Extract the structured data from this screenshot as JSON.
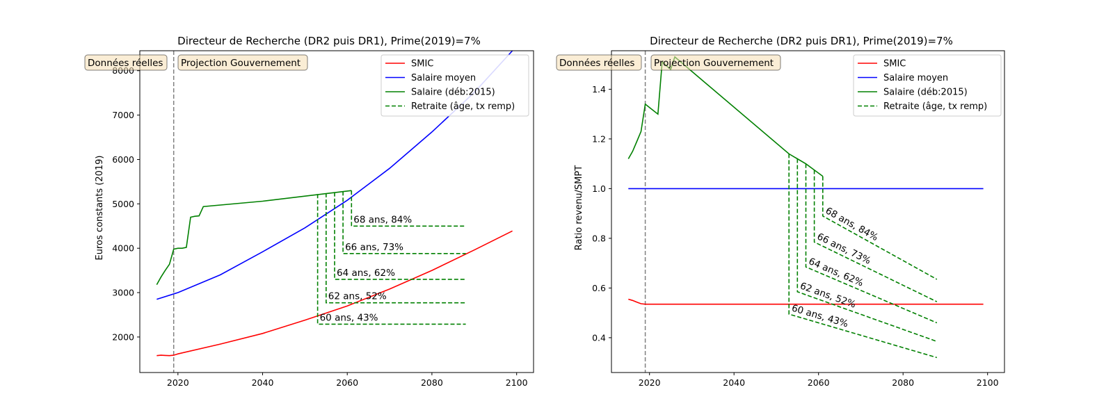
{
  "chart_data": [
    {
      "type": "line",
      "title": "Directeur de Recherche (DR2 puis DR1), Prime(2019)=7%",
      "xlabel": "",
      "ylabel": "Euros constants (2019)",
      "xlim": [
        2011,
        2104
      ],
      "ylim": [
        1200,
        8450
      ],
      "xticks": [
        2020,
        2040,
        2060,
        2080,
        2100
      ],
      "yticks": [
        2000,
        3000,
        4000,
        5000,
        6000,
        7000,
        8000
      ],
      "grid": false,
      "legend_position": "top-right",
      "vline_x": 2019,
      "boxes": [
        "Données réelles",
        "Projection Gouvernement"
      ],
      "series": [
        {
          "name": "SMIC",
          "style": "solid",
          "color": "#ff0000",
          "x": [
            2015,
            2016,
            2017,
            2018,
            2019,
            2020,
            2030,
            2040,
            2050,
            2060,
            2070,
            2080,
            2090,
            2099
          ],
          "y": [
            1580,
            1590,
            1585,
            1580,
            1590,
            1620,
            1840,
            2080,
            2380,
            2700,
            3080,
            3500,
            3960,
            4390
          ]
        },
        {
          "name": "Salaire moyen",
          "style": "solid",
          "color": "#0000ff",
          "x": [
            2015,
            2020,
            2030,
            2040,
            2050,
            2060,
            2070,
            2080,
            2090,
            2099
          ],
          "y": [
            2850,
            3000,
            3400,
            3920,
            4460,
            5080,
            5800,
            6620,
            7510,
            8450
          ]
        },
        {
          "name": "Salaire (déb:2015)",
          "style": "solid",
          "color": "#008000",
          "x": [
            2015,
            2016,
            2017,
            2018,
            2019,
            2020,
            2021,
            2022,
            2023,
            2024,
            2025,
            2026,
            2040,
            2061
          ],
          "y": [
            3180,
            3350,
            3500,
            3640,
            3980,
            4000,
            4000,
            4020,
            4700,
            4720,
            4730,
            4940,
            5060,
            5300
          ]
        },
        {
          "name": "Retraite (âge, tx remp)",
          "style": "dashed",
          "color": "#008000",
          "segments": [
            {
              "label": "60 ans, 43%",
              "start_x": 2053,
              "start_y": 5220,
              "end_x": 2088,
              "level": 2290
            },
            {
              "label": "62 ans, 52%",
              "start_x": 2055,
              "start_y": 5240,
              "end_x": 2088,
              "level": 2770
            },
            {
              "label": "64 ans, 62%",
              "start_x": 2057,
              "start_y": 5260,
              "end_x": 2088,
              "level": 3300
            },
            {
              "label": "66 ans, 73%",
              "start_x": 2059,
              "start_y": 5280,
              "end_x": 2088,
              "level": 3880
            },
            {
              "label": "68 ans, 84%",
              "start_x": 2061,
              "start_y": 5300,
              "end_x": 2088,
              "level": 4500
            }
          ]
        }
      ]
    },
    {
      "type": "line",
      "title": "Directeur de Recherche (DR2 puis DR1), Prime(2019)=7%",
      "xlabel": "",
      "ylabel": "Ratio revenu/SMPT",
      "xlim": [
        2011,
        2104
      ],
      "ylim": [
        0.26,
        1.555
      ],
      "xticks": [
        2020,
        2040,
        2060,
        2080,
        2100
      ],
      "yticks": [
        0.4,
        0.6,
        0.8,
        1.0,
        1.2,
        1.4
      ],
      "grid": false,
      "legend_position": "top-right",
      "vline_x": 2019,
      "boxes": [
        "Données réelles",
        "Projection Gouvernement"
      ],
      "series": [
        {
          "name": "SMIC",
          "style": "solid",
          "color": "#ff0000",
          "x": [
            2015,
            2016,
            2017,
            2018,
            2019,
            2020,
            2099
          ],
          "y": [
            0.555,
            0.55,
            0.543,
            0.537,
            0.535,
            0.535,
            0.535
          ]
        },
        {
          "name": "Salaire moyen",
          "style": "solid",
          "color": "#0000ff",
          "x": [
            2015,
            2099
          ],
          "y": [
            1.0,
            1.0
          ]
        },
        {
          "name": "Salaire (déb:2015)",
          "style": "solid",
          "color": "#008000",
          "x": [
            2015,
            2016,
            2017,
            2018,
            2019,
            2022,
            2023,
            2025,
            2026,
            2053,
            2055,
            2057,
            2059,
            2061
          ],
          "y": [
            1.12,
            1.15,
            1.19,
            1.23,
            1.34,
            1.3,
            1.51,
            1.48,
            1.53,
            1.14,
            1.12,
            1.1,
            1.075,
            1.05
          ]
        },
        {
          "name": "Retraite (âge, tx remp)",
          "style": "dashed",
          "color": "#008000",
          "segments": [
            {
              "label": "60 ans, 43%",
              "start_x": 2053,
              "start_y": 1.14,
              "end_x": 2088,
              "level": 0.495,
              "end_level": 0.32
            },
            {
              "label": "62 ans, 52%",
              "start_x": 2055,
              "start_y": 1.12,
              "end_x": 2088,
              "level": 0.585,
              "end_level": 0.385
            },
            {
              "label": "64 ans, 62%",
              "start_x": 2057,
              "start_y": 1.1,
              "end_x": 2088,
              "level": 0.685,
              "end_level": 0.46
            },
            {
              "label": "66 ans, 73%",
              "start_x": 2059,
              "start_y": 1.075,
              "end_x": 2088,
              "level": 0.785,
              "end_level": 0.545
            },
            {
              "label": "68 ans, 84%",
              "start_x": 2061,
              "start_y": 1.05,
              "end_x": 2088,
              "level": 0.89,
              "end_level": 0.635
            }
          ]
        }
      ]
    }
  ]
}
